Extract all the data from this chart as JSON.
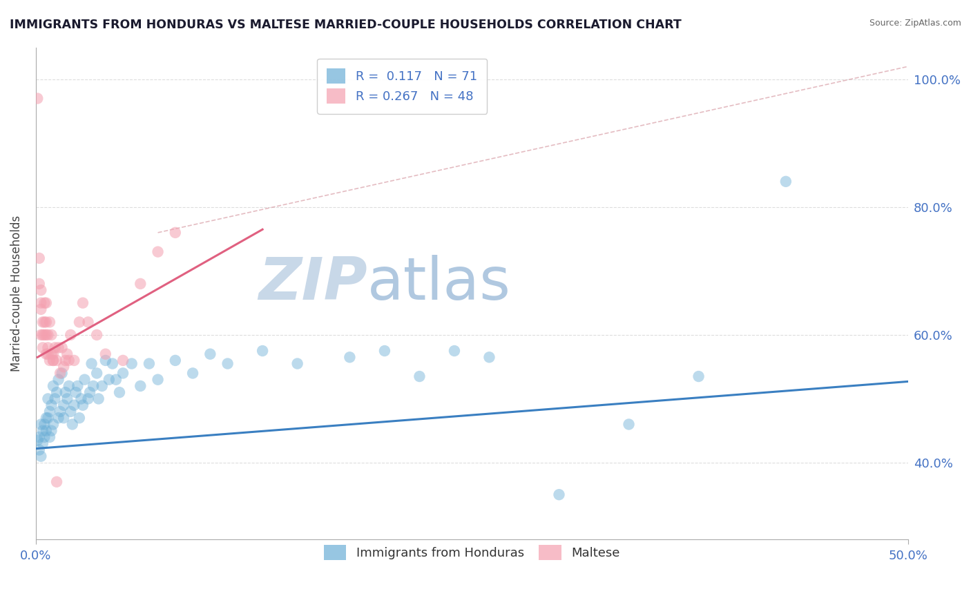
{
  "title": "IMMIGRANTS FROM HONDURAS VS MALTESE MARRIED-COUPLE HOUSEHOLDS CORRELATION CHART",
  "source": "Source: ZipAtlas.com",
  "ylabel": "Married-couple Households",
  "y_ticks": [
    0.4,
    0.6,
    0.8,
    1.0
  ],
  "y_tick_labels": [
    "40.0%",
    "60.0%",
    "80.0%",
    "100.0%"
  ],
  "xlim": [
    0.0,
    0.5
  ],
  "ylim": [
    0.28,
    1.05
  ],
  "x_ticks": [
    0.0,
    0.5
  ],
  "x_tick_labels": [
    "0.0%",
    "50.0%"
  ],
  "R_blue": 0.117,
  "N_blue": 71,
  "R_pink": 0.267,
  "N_pink": 48,
  "blue_color": "#6baed6",
  "pink_color": "#f4a0b0",
  "legend_label_blue": "Immigrants from Honduras",
  "legend_label_pink": "Maltese",
  "watermark_zip": "ZIP",
  "watermark_atlas": "atlas",
  "watermark_color_zip": "#c8d8e8",
  "watermark_color_atlas": "#b0c8e0",
  "blue_scatter": [
    [
      0.001,
      0.435
    ],
    [
      0.002,
      0.42
    ],
    [
      0.002,
      0.44
    ],
    [
      0.003,
      0.46
    ],
    [
      0.003,
      0.41
    ],
    [
      0.004,
      0.45
    ],
    [
      0.004,
      0.43
    ],
    [
      0.005,
      0.46
    ],
    [
      0.005,
      0.44
    ],
    [
      0.006,
      0.47
    ],
    [
      0.006,
      0.45
    ],
    [
      0.007,
      0.5
    ],
    [
      0.007,
      0.47
    ],
    [
      0.008,
      0.48
    ],
    [
      0.008,
      0.44
    ],
    [
      0.009,
      0.49
    ],
    [
      0.009,
      0.45
    ],
    [
      0.01,
      0.52
    ],
    [
      0.01,
      0.46
    ],
    [
      0.011,
      0.5
    ],
    [
      0.012,
      0.51
    ],
    [
      0.013,
      0.53
    ],
    [
      0.013,
      0.47
    ],
    [
      0.014,
      0.48
    ],
    [
      0.015,
      0.54
    ],
    [
      0.016,
      0.47
    ],
    [
      0.016,
      0.49
    ],
    [
      0.017,
      0.51
    ],
    [
      0.018,
      0.5
    ],
    [
      0.019,
      0.52
    ],
    [
      0.02,
      0.48
    ],
    [
      0.021,
      0.46
    ],
    [
      0.022,
      0.49
    ],
    [
      0.023,
      0.51
    ],
    [
      0.024,
      0.52
    ],
    [
      0.025,
      0.47
    ],
    [
      0.026,
      0.5
    ],
    [
      0.027,
      0.49
    ],
    [
      0.028,
      0.53
    ],
    [
      0.03,
      0.5
    ],
    [
      0.031,
      0.51
    ],
    [
      0.032,
      0.555
    ],
    [
      0.033,
      0.52
    ],
    [
      0.035,
      0.54
    ],
    [
      0.036,
      0.5
    ],
    [
      0.038,
      0.52
    ],
    [
      0.04,
      0.56
    ],
    [
      0.042,
      0.53
    ],
    [
      0.044,
      0.555
    ],
    [
      0.046,
      0.53
    ],
    [
      0.048,
      0.51
    ],
    [
      0.05,
      0.54
    ],
    [
      0.055,
      0.555
    ],
    [
      0.06,
      0.52
    ],
    [
      0.065,
      0.555
    ],
    [
      0.07,
      0.53
    ],
    [
      0.08,
      0.56
    ],
    [
      0.09,
      0.54
    ],
    [
      0.1,
      0.57
    ],
    [
      0.11,
      0.555
    ],
    [
      0.13,
      0.575
    ],
    [
      0.15,
      0.555
    ],
    [
      0.18,
      0.565
    ],
    [
      0.2,
      0.575
    ],
    [
      0.22,
      0.535
    ],
    [
      0.24,
      0.575
    ],
    [
      0.26,
      0.565
    ],
    [
      0.3,
      0.35
    ],
    [
      0.34,
      0.46
    ],
    [
      0.38,
      0.535
    ],
    [
      0.43,
      0.84
    ]
  ],
  "pink_scatter": [
    [
      0.001,
      0.97
    ],
    [
      0.002,
      0.68
    ],
    [
      0.002,
      0.72
    ],
    [
      0.003,
      0.64
    ],
    [
      0.003,
      0.67
    ],
    [
      0.003,
      0.6
    ],
    [
      0.003,
      0.65
    ],
    [
      0.004,
      0.62
    ],
    [
      0.004,
      0.58
    ],
    [
      0.004,
      0.6
    ],
    [
      0.005,
      0.6
    ],
    [
      0.005,
      0.65
    ],
    [
      0.005,
      0.62
    ],
    [
      0.006,
      0.57
    ],
    [
      0.006,
      0.6
    ],
    [
      0.006,
      0.62
    ],
    [
      0.006,
      0.65
    ],
    [
      0.007,
      0.6
    ],
    [
      0.007,
      0.58
    ],
    [
      0.007,
      0.57
    ],
    [
      0.008,
      0.56
    ],
    [
      0.008,
      0.62
    ],
    [
      0.009,
      0.57
    ],
    [
      0.009,
      0.6
    ],
    [
      0.01,
      0.57
    ],
    [
      0.01,
      0.56
    ],
    [
      0.01,
      0.56
    ],
    [
      0.011,
      0.58
    ],
    [
      0.012,
      0.37
    ],
    [
      0.012,
      0.56
    ],
    [
      0.013,
      0.58
    ],
    [
      0.014,
      0.54
    ],
    [
      0.015,
      0.58
    ],
    [
      0.016,
      0.55
    ],
    [
      0.017,
      0.56
    ],
    [
      0.018,
      0.57
    ],
    [
      0.019,
      0.56
    ],
    [
      0.02,
      0.6
    ],
    [
      0.022,
      0.56
    ],
    [
      0.025,
      0.62
    ],
    [
      0.027,
      0.65
    ],
    [
      0.03,
      0.62
    ],
    [
      0.035,
      0.6
    ],
    [
      0.04,
      0.57
    ],
    [
      0.05,
      0.56
    ],
    [
      0.06,
      0.68
    ],
    [
      0.07,
      0.73
    ],
    [
      0.08,
      0.76
    ]
  ],
  "blue_line_x": [
    0.0,
    0.5
  ],
  "blue_line_y": [
    0.422,
    0.527
  ],
  "pink_line_x": [
    0.001,
    0.13
  ],
  "pink_line_y": [
    0.565,
    0.765
  ],
  "dashed_line_x": [
    0.07,
    0.5
  ],
  "dashed_line_y": [
    0.76,
    1.02
  ],
  "tick_label_color": "#4472c4",
  "grid_color": "#dddddd"
}
